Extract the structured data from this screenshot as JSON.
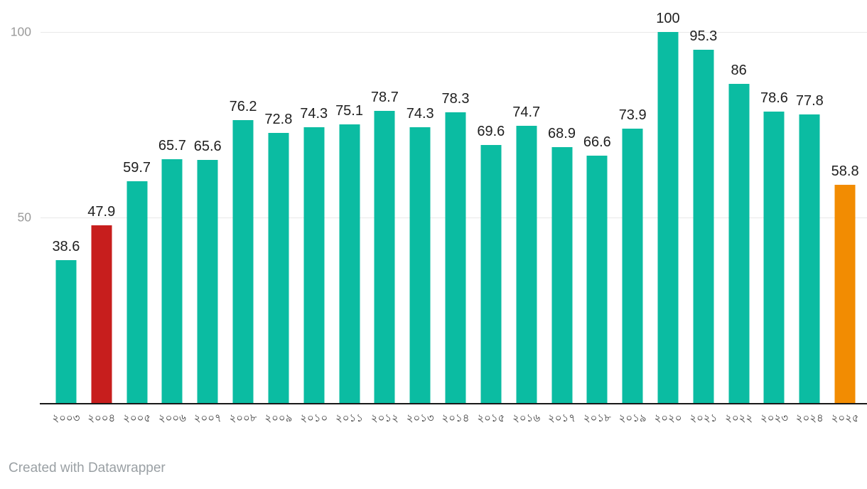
{
  "footer": {
    "credit": "Created with Datawrapper"
  },
  "palette": {
    "teal": "#0bbca2",
    "red": "#c71e1d",
    "orange": "#f28c02",
    "gridline": "#e8e8e8",
    "axis_tick_label": "#9a9a9a",
    "baseline": "#191919",
    "value_label": "#1f1f1f",
    "x_tick_label": "#3a3a3a",
    "credit_text": "#9aa0a4"
  },
  "chart_data": {
    "type": "bar",
    "title": "",
    "xlabel": "",
    "ylabel": "",
    "ylim": [
      0,
      100
    ],
    "grid": "horizontal-only",
    "legend": "none",
    "y_ticks": [
      {
        "label": "50",
        "value": 50
      },
      {
        "label": "100",
        "value": 100
      }
    ],
    "categories": [
      "২০০৩",
      "২০০৪",
      "২০০৫",
      "২০০৬",
      "২০০৭",
      "২০০৮",
      "২০০৯",
      "২০১০",
      "২০১১",
      "২০১২",
      "২০১৩",
      "২০১৪",
      "২০১৫",
      "২০১৬",
      "২০১৭",
      "২০১৮",
      "২০১৯",
      "২০২০",
      "২০২১",
      "২০২২",
      "২০২৩",
      "২০২৪",
      "২০২৫"
    ],
    "values": [
      38.6,
      47.9,
      59.7,
      65.7,
      65.6,
      76.2,
      72.8,
      74.3,
      75.1,
      78.7,
      74.3,
      78.3,
      69.6,
      74.7,
      68.9,
      66.6,
      73.9,
      100,
      95.3,
      86,
      78.6,
      77.8,
      58.8
    ],
    "value_labels": [
      "38.6",
      "47.9",
      "59.7",
      "65.7",
      "65.6",
      "76.2",
      "72.8",
      "74.3",
      "75.1",
      "78.7",
      "74.3",
      "78.3",
      "69.6",
      "74.7",
      "68.9",
      "66.6",
      "73.9",
      "100",
      "95.3",
      "86",
      "78.6",
      "77.8",
      "58.8"
    ],
    "bar_colors": [
      "teal",
      "red",
      "teal",
      "teal",
      "teal",
      "teal",
      "teal",
      "teal",
      "teal",
      "teal",
      "teal",
      "teal",
      "teal",
      "teal",
      "teal",
      "teal",
      "teal",
      "teal",
      "teal",
      "teal",
      "teal",
      "teal",
      "orange"
    ]
  }
}
